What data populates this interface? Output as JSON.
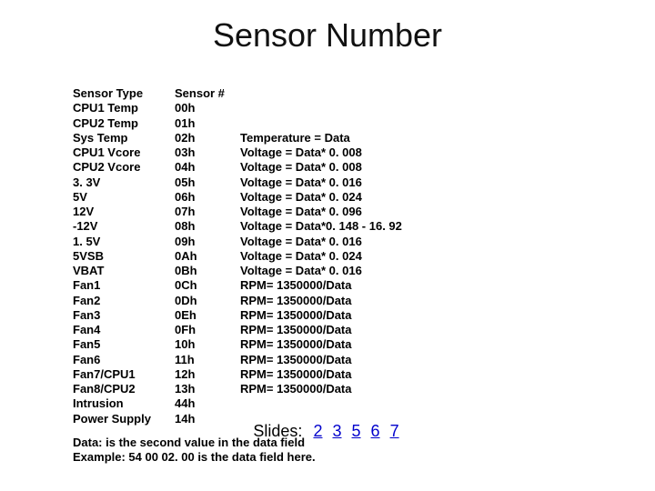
{
  "title": "Sensor Number",
  "header": {
    "type": "Sensor Type",
    "num": "Sensor #"
  },
  "rows": [
    {
      "type": "CPU1 Temp",
      "num": "00h",
      "formula": ""
    },
    {
      "type": "CPU2 Temp",
      "num": "01h",
      "formula": ""
    },
    {
      "type": "Sys Temp",
      "num": "02h",
      "formula": "Temperature = Data"
    },
    {
      "type": "CPU1 Vcore",
      "num": "03h",
      "formula": "Voltage = Data* 0. 008"
    },
    {
      "type": "CPU2 Vcore",
      "num": "04h",
      "formula": "Voltage = Data* 0. 008"
    },
    {
      "type": "3. 3V",
      "num": "05h",
      "formula": "Voltage = Data* 0. 016"
    },
    {
      "type": "5V",
      "num": "06h",
      "formula": "Voltage = Data* 0. 024"
    },
    {
      "type": "12V",
      "num": "07h",
      "formula": "Voltage = Data* 0. 096"
    },
    {
      "type": "-12V",
      "num": "08h",
      "formula": "Voltage = Data*0. 148 - 16. 92"
    },
    {
      "type": "1. 5V",
      "num": "09h",
      "formula": "Voltage = Data* 0. 016"
    },
    {
      "type": "5VSB",
      "num": "0Ah",
      "formula": "Voltage = Data* 0. 024"
    },
    {
      "type": "VBAT",
      "num": "0Bh",
      "formula": "Voltage = Data* 0. 016"
    },
    {
      "type": "Fan1",
      "num": "0Ch",
      "formula": "RPM= 1350000/Data"
    },
    {
      "type": "Fan2",
      "num": "0Dh",
      "formula": "RPM= 1350000/Data"
    },
    {
      "type": "Fan3",
      "num": "0Eh",
      "formula": "RPM= 1350000/Data"
    },
    {
      "type": "Fan4",
      "num": "0Fh",
      "formula": "RPM= 1350000/Data"
    },
    {
      "type": "Fan5",
      "num": "10h",
      "formula": "RPM= 1350000/Data"
    },
    {
      "type": "Fan6",
      "num": "11h",
      "formula": "RPM= 1350000/Data"
    },
    {
      "type": "Fan7/CPU1",
      "num": "12h",
      "formula": "RPM= 1350000/Data"
    },
    {
      "type": "Fan8/CPU2",
      "num": "13h",
      "formula": "RPM= 1350000/Data"
    },
    {
      "type": "Intrusion",
      "num": "44h",
      "formula": ""
    },
    {
      "type": "Power Supply",
      "num": "14h",
      "formula": ""
    }
  ],
  "notes": [
    "Data: is the second value in the data field",
    "Example: 54 00 02. 00 is the data field here."
  ],
  "slides": {
    "label": "Slides:",
    "links": [
      "2",
      "3",
      "5",
      "6",
      "7"
    ]
  },
  "colors": {
    "text": "#000000",
    "link": "#0000cc",
    "background": "#ffffff"
  }
}
